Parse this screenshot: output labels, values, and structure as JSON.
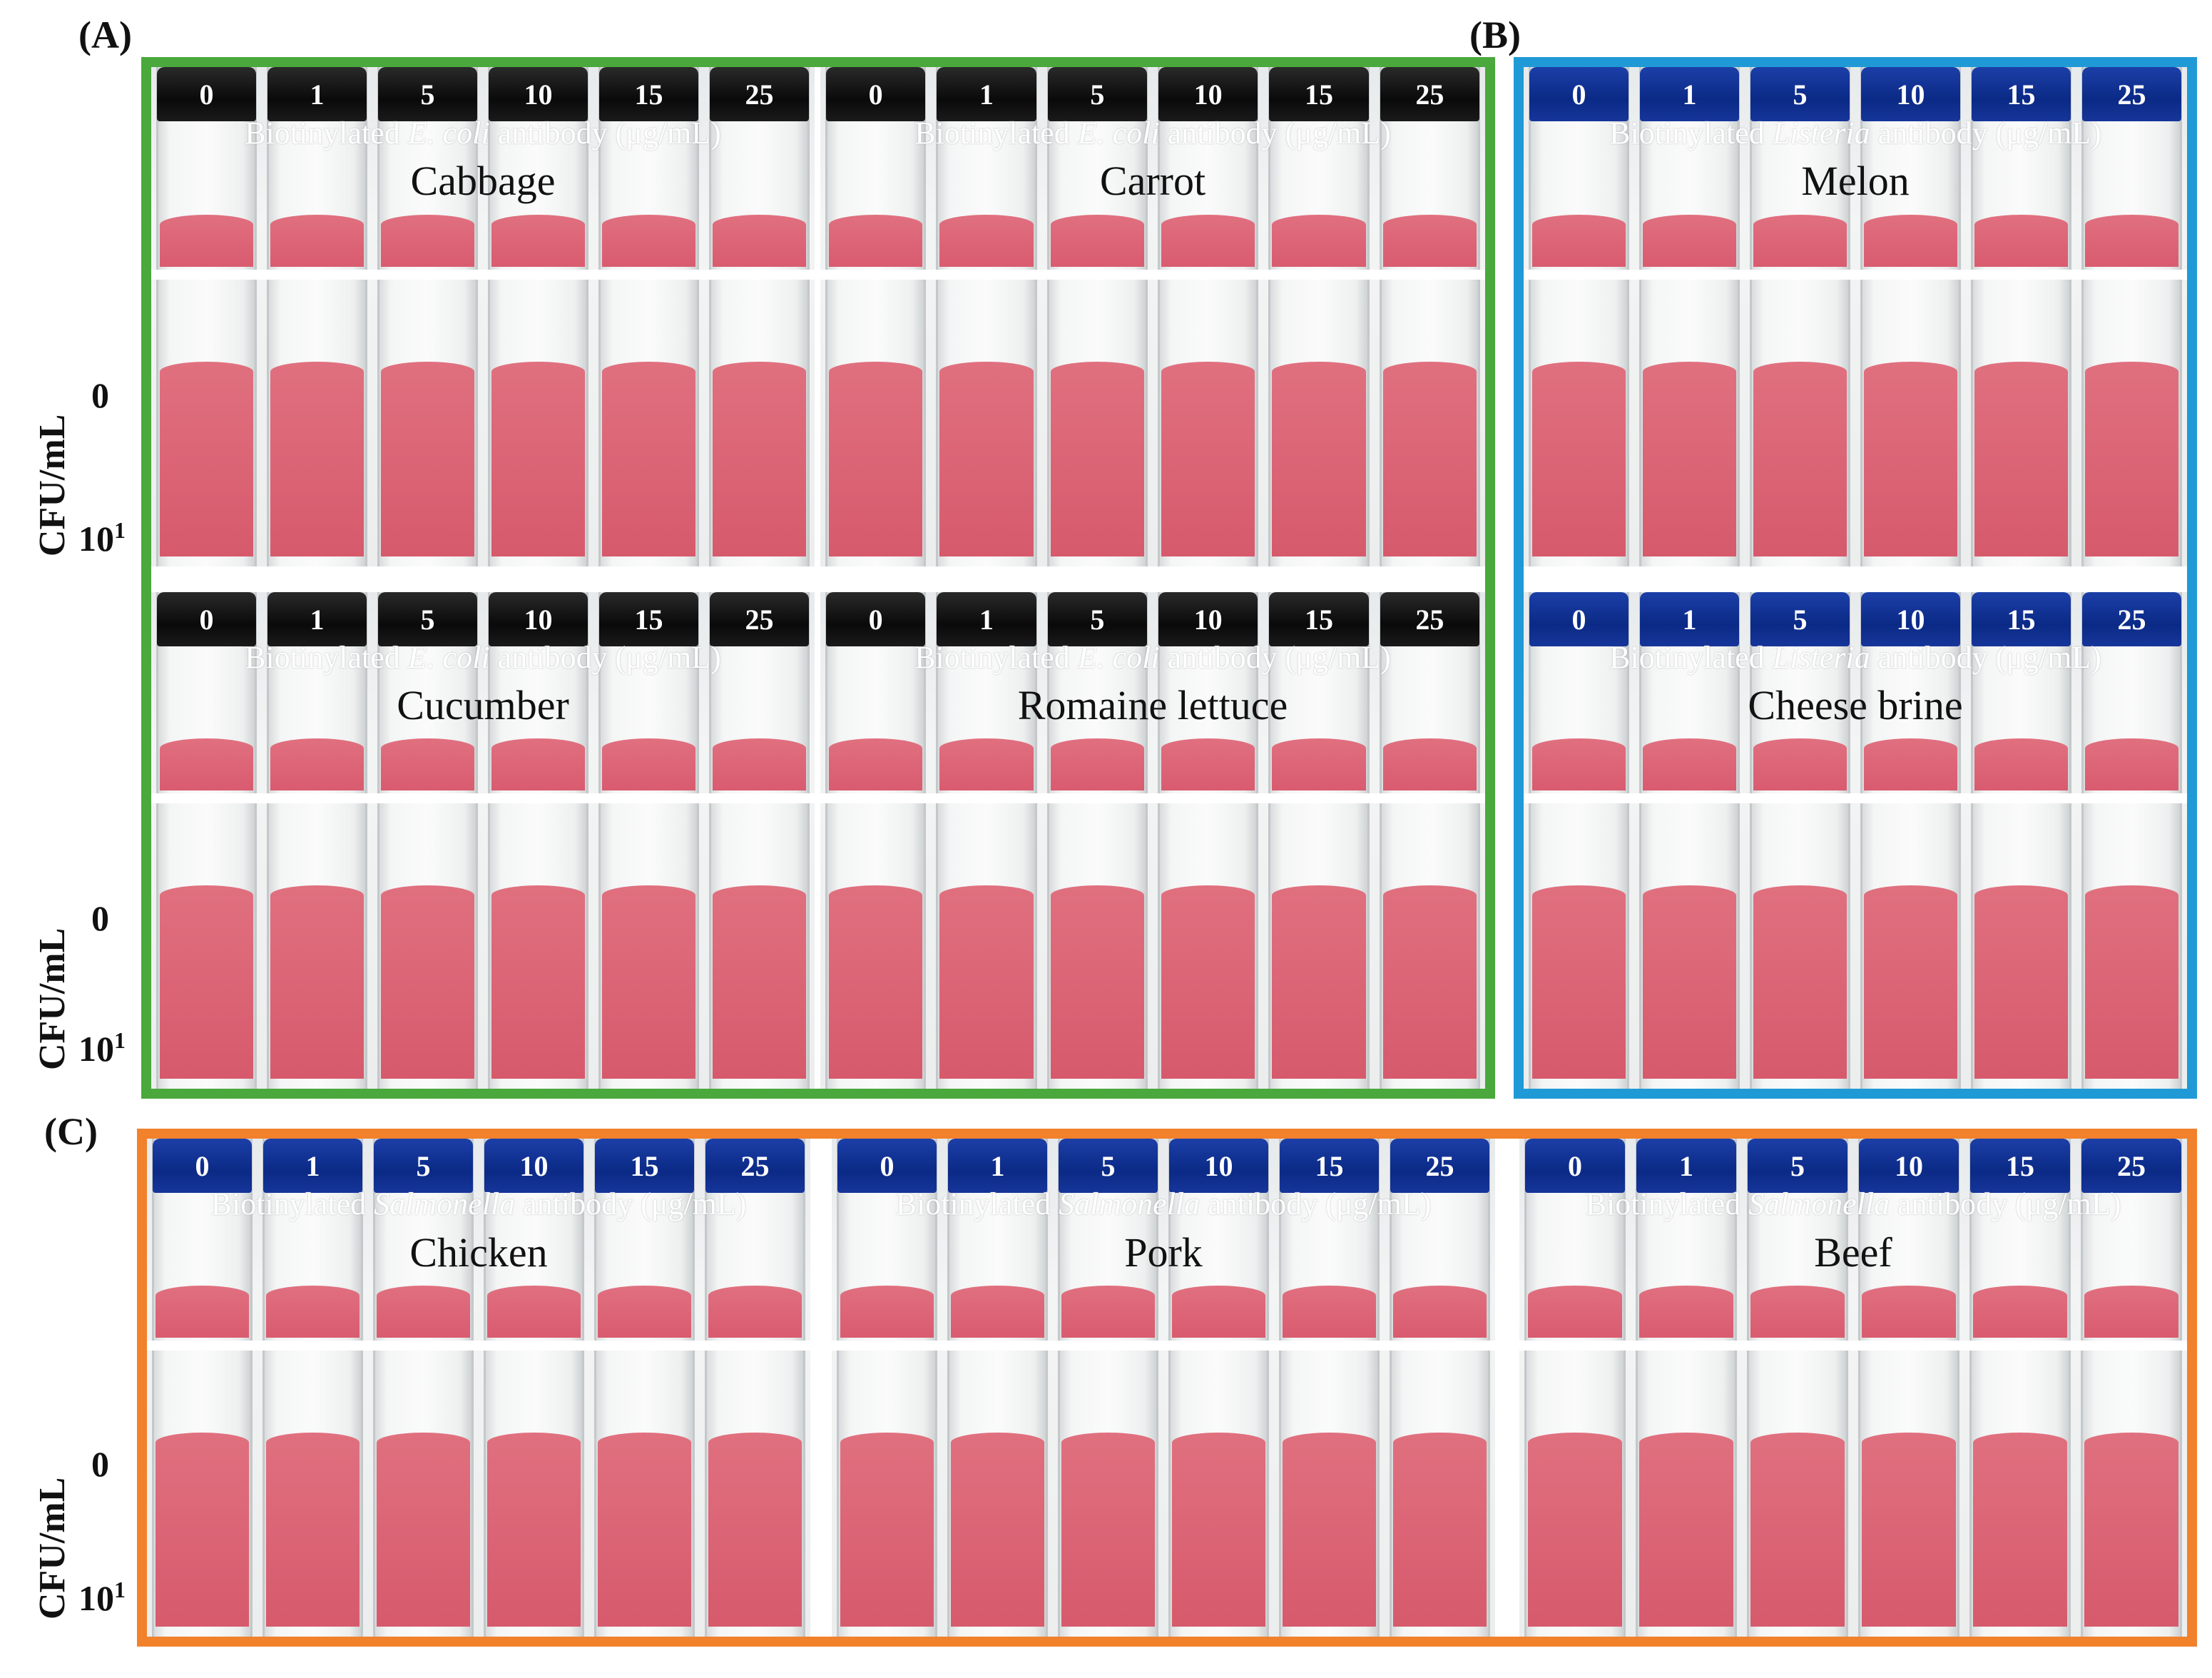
{
  "figure": {
    "panels": [
      {
        "letter": "(A)",
        "frame_color": "#4aa83c"
      },
      {
        "letter": "(B)",
        "frame_color": "#1f9ad6"
      },
      {
        "letter": "(C)",
        "frame_color": "#f2812c"
      }
    ],
    "y_axis_label": "CFU/mL",
    "row_values": [
      "0",
      "10",
      "1"
    ],
    "concentrations": [
      "0",
      "1",
      "5",
      "10",
      "15",
      "25"
    ],
    "cap_colors": {
      "black": "#111111",
      "navy": "#0b2a86"
    },
    "liquid_color": "#e0707f",
    "photos": [
      {
        "antibody_prefix": "Biotinylated ",
        "organism": "E. coli",
        "antibody_suffix": " antibody (μg/mL)",
        "sample": "Cabbage",
        "cap": "black"
      },
      {
        "antibody_prefix": "Biotinylated ",
        "organism": "E. coli",
        "antibody_suffix": " antibody (μg/mL)",
        "sample": "Carrot",
        "cap": "black"
      },
      {
        "antibody_prefix": "Biotinylated ",
        "organism": "E. coli",
        "antibody_suffix": " antibody (μg/mL)",
        "sample": "Cucumber",
        "cap": "black"
      },
      {
        "antibody_prefix": "Biotinylated ",
        "organism": "E. coli",
        "antibody_suffix": " antibody (μg/mL)",
        "sample": "Romaine lettuce",
        "cap": "black"
      },
      {
        "antibody_prefix": "Biotinylated ",
        "organism": "Listeria",
        "antibody_suffix": " antibody (μg/mL)",
        "sample": "Melon",
        "cap": "navy"
      },
      {
        "antibody_prefix": "Biotinylated ",
        "organism": "Listeria",
        "antibody_suffix": " antibody (μg/mL)",
        "sample": "Cheese brine",
        "cap": "navy"
      },
      {
        "antibody_prefix": "Biotinylated ",
        "organism": "Salmonella",
        "antibody_suffix": " antibody (μg/mL)",
        "sample": "Chicken",
        "cap": "navy"
      },
      {
        "antibody_prefix": "Biotinylated ",
        "organism": "Salmonella",
        "antibody_suffix": " antibody (μg/mL)",
        "sample": "Pork",
        "cap": "navy"
      },
      {
        "antibody_prefix": "Biotinylated ",
        "organism": "Salmonella",
        "antibody_suffix": " antibody (μg/mL)",
        "sample": "Beef",
        "cap": "navy"
      }
    ]
  }
}
